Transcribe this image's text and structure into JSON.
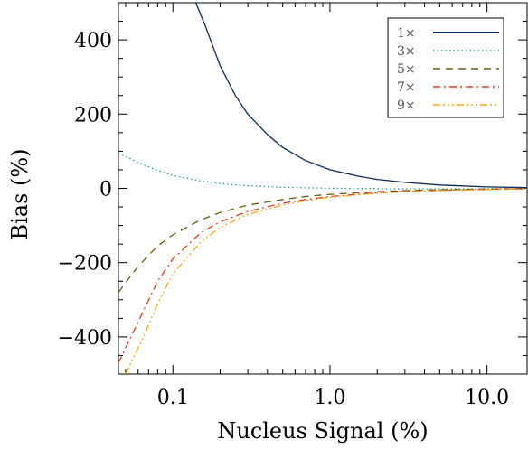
{
  "chart_data": {
    "type": "line",
    "xlabel": "Nucleus Signal (%)",
    "ylabel": "Bias (%)",
    "xscale": "log",
    "xlim": [
      0.045,
      18
    ],
    "ylim": [
      -500,
      500
    ],
    "xtick_labels": [
      {
        "value": 0.1,
        "label": "0.1"
      },
      {
        "value": 1.0,
        "label": "1.0"
      },
      {
        "value": 10.0,
        "label": "10.0"
      }
    ],
    "ytick_labels": [
      {
        "value": 400,
        "label": "400"
      },
      {
        "value": 200,
        "label": "200"
      },
      {
        "value": 0,
        "label": "0"
      },
      {
        "value": -200,
        "label": "−200"
      },
      {
        "value": -400,
        "label": "−400"
      }
    ],
    "grid": false,
    "legend_position": "top-right",
    "series": [
      {
        "name": "1×",
        "color": "#0d2a5c",
        "dash": "solid",
        "x": [
          0.14,
          0.16,
          0.2,
          0.25,
          0.3,
          0.4,
          0.5,
          0.7,
          1.0,
          1.5,
          2.0,
          3.0,
          5.0,
          10.0,
          18.0
        ],
        "y": [
          500,
          440,
          330,
          250,
          200,
          145,
          110,
          75,
          50,
          33,
          24,
          16,
          9,
          4,
          2
        ]
      },
      {
        "name": "3×",
        "color": "#1f9e7a",
        "dash": "dotted",
        "x": [
          0.045,
          0.06,
          0.08,
          0.1,
          0.15,
          0.2,
          0.3,
          0.5,
          0.7,
          1.0,
          2.0,
          3.0,
          5.0,
          10.0,
          18.0
        ],
        "y": [
          95,
          70,
          48,
          35,
          20,
          13,
          7,
          3,
          1.5,
          0.5,
          -1,
          -1.5,
          -1.5,
          -1,
          -0.5
        ]
      },
      {
        "name": "5×",
        "color": "#6b5a10",
        "dash": "dashed",
        "x": [
          0.045,
          0.06,
          0.08,
          0.1,
          0.15,
          0.2,
          0.3,
          0.5,
          0.7,
          1.0,
          2.0,
          3.0,
          5.0,
          10.0,
          18.0
        ],
        "y": [
          -280,
          -210,
          -155,
          -125,
          -85,
          -65,
          -45,
          -30,
          -22,
          -16,
          -9,
          -6,
          -4,
          -2,
          -1
        ]
      },
      {
        "name": "7×",
        "color": "#d9411e",
        "dash": "dashdot",
        "x": [
          0.045,
          0.06,
          0.08,
          0.1,
          0.15,
          0.2,
          0.3,
          0.5,
          0.7,
          1.0,
          2.0,
          3.0,
          5.0,
          10.0,
          18.0
        ],
        "y": [
          -470,
          -360,
          -250,
          -190,
          -120,
          -90,
          -62,
          -40,
          -30,
          -22,
          -12,
          -8,
          -5,
          -3,
          -1
        ]
      },
      {
        "name": "9×",
        "color": "#f0a81c",
        "dash": "dashdotdotdot",
        "x": [
          0.05,
          0.065,
          0.08,
          0.1,
          0.15,
          0.2,
          0.3,
          0.5,
          0.7,
          1.0,
          2.0,
          3.0,
          5.0,
          10.0,
          18.0
        ],
        "y": [
          -500,
          -400,
          -310,
          -230,
          -145,
          -105,
          -70,
          -45,
          -33,
          -24,
          -13,
          -9,
          -6,
          -3,
          -1
        ]
      }
    ]
  }
}
